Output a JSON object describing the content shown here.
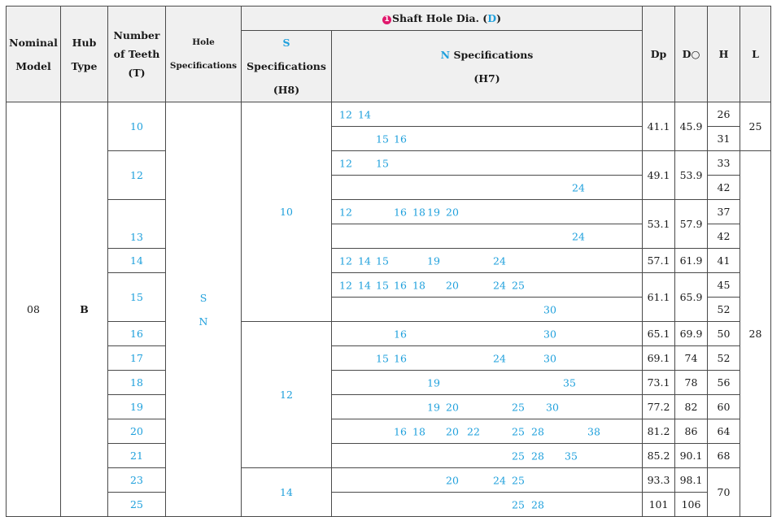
{
  "headers": {
    "nominal_model": [
      "Nominal",
      "Model"
    ],
    "hub_type": [
      "Hub",
      "Type"
    ],
    "teeth": [
      "Number",
      "of Teeth",
      "(T)"
    ],
    "hole_spec": [
      "Hole",
      "Specifications"
    ],
    "shaft_hole_badge": "1",
    "shaft_hole_prefix": "Shaft Hole Dia. (",
    "shaft_hole_d": "D",
    "shaft_hole_suffix": ")",
    "s_letter": "S",
    "s_spec": " Specifications",
    "s_tol": "(H8)",
    "n_letter": "N",
    "n_spec": " Specifications",
    "n_tol": "(H7)",
    "dp": "Dp",
    "do": "D○",
    "h": "H",
    "l": "L"
  },
  "model": "08",
  "hub": "B",
  "hole_specs": [
    "S",
    "N"
  ],
  "s_groups": [
    "10",
    "12",
    "14"
  ],
  "teeth": [
    "10",
    "12",
    "13",
    "14",
    "15",
    "16",
    "17",
    "18",
    "19",
    "20",
    "21",
    "23",
    "25"
  ],
  "dp": [
    "41.1",
    "49.1",
    "53.1",
    "57.1",
    "61.1",
    "65.1",
    "69.1",
    "73.1",
    "77.2",
    "81.2",
    "85.2",
    "93.3",
    "101"
  ],
  "do": [
    "45.9",
    "53.9",
    "57.9",
    "61.9",
    "65.9",
    "69.9",
    "74",
    "78",
    "82",
    "86",
    "90.1",
    "98.1",
    "106"
  ],
  "h": [
    "26",
    "31",
    "33",
    "42",
    "37",
    "42",
    "41",
    "45",
    "52",
    "50",
    "52",
    "56",
    "60",
    "64",
    "68",
    "70"
  ],
  "l": [
    "25",
    "28"
  ],
  "n_rows": [
    [
      "12",
      "14"
    ],
    [
      "15",
      "16"
    ],
    [
      "12",
      "15"
    ],
    [
      "24"
    ],
    [
      "12",
      "16",
      "18",
      "19",
      "20"
    ],
    [
      "24"
    ],
    [
      "12",
      "14",
      "15",
      "19",
      "24"
    ],
    [
      "12",
      "14",
      "15",
      "16",
      "18",
      "20",
      "24",
      "25"
    ],
    [
      "30"
    ],
    [
      "16",
      "30"
    ],
    [
      "15",
      "16",
      "24",
      "30"
    ],
    [
      "19",
      "35"
    ],
    [
      "19",
      "20",
      "25",
      "30"
    ],
    [
      "16",
      "18",
      "20",
      "22",
      "25",
      "28",
      "38"
    ],
    [
      "25",
      "28",
      "35"
    ],
    [
      "20",
      "24",
      "25"
    ],
    [
      "25",
      "28"
    ]
  ],
  "colors": {
    "blue": "#1fa0dc",
    "badge": "#e0186c",
    "header_bg": "#f0f0f0",
    "border": "#4a4a4a"
  }
}
